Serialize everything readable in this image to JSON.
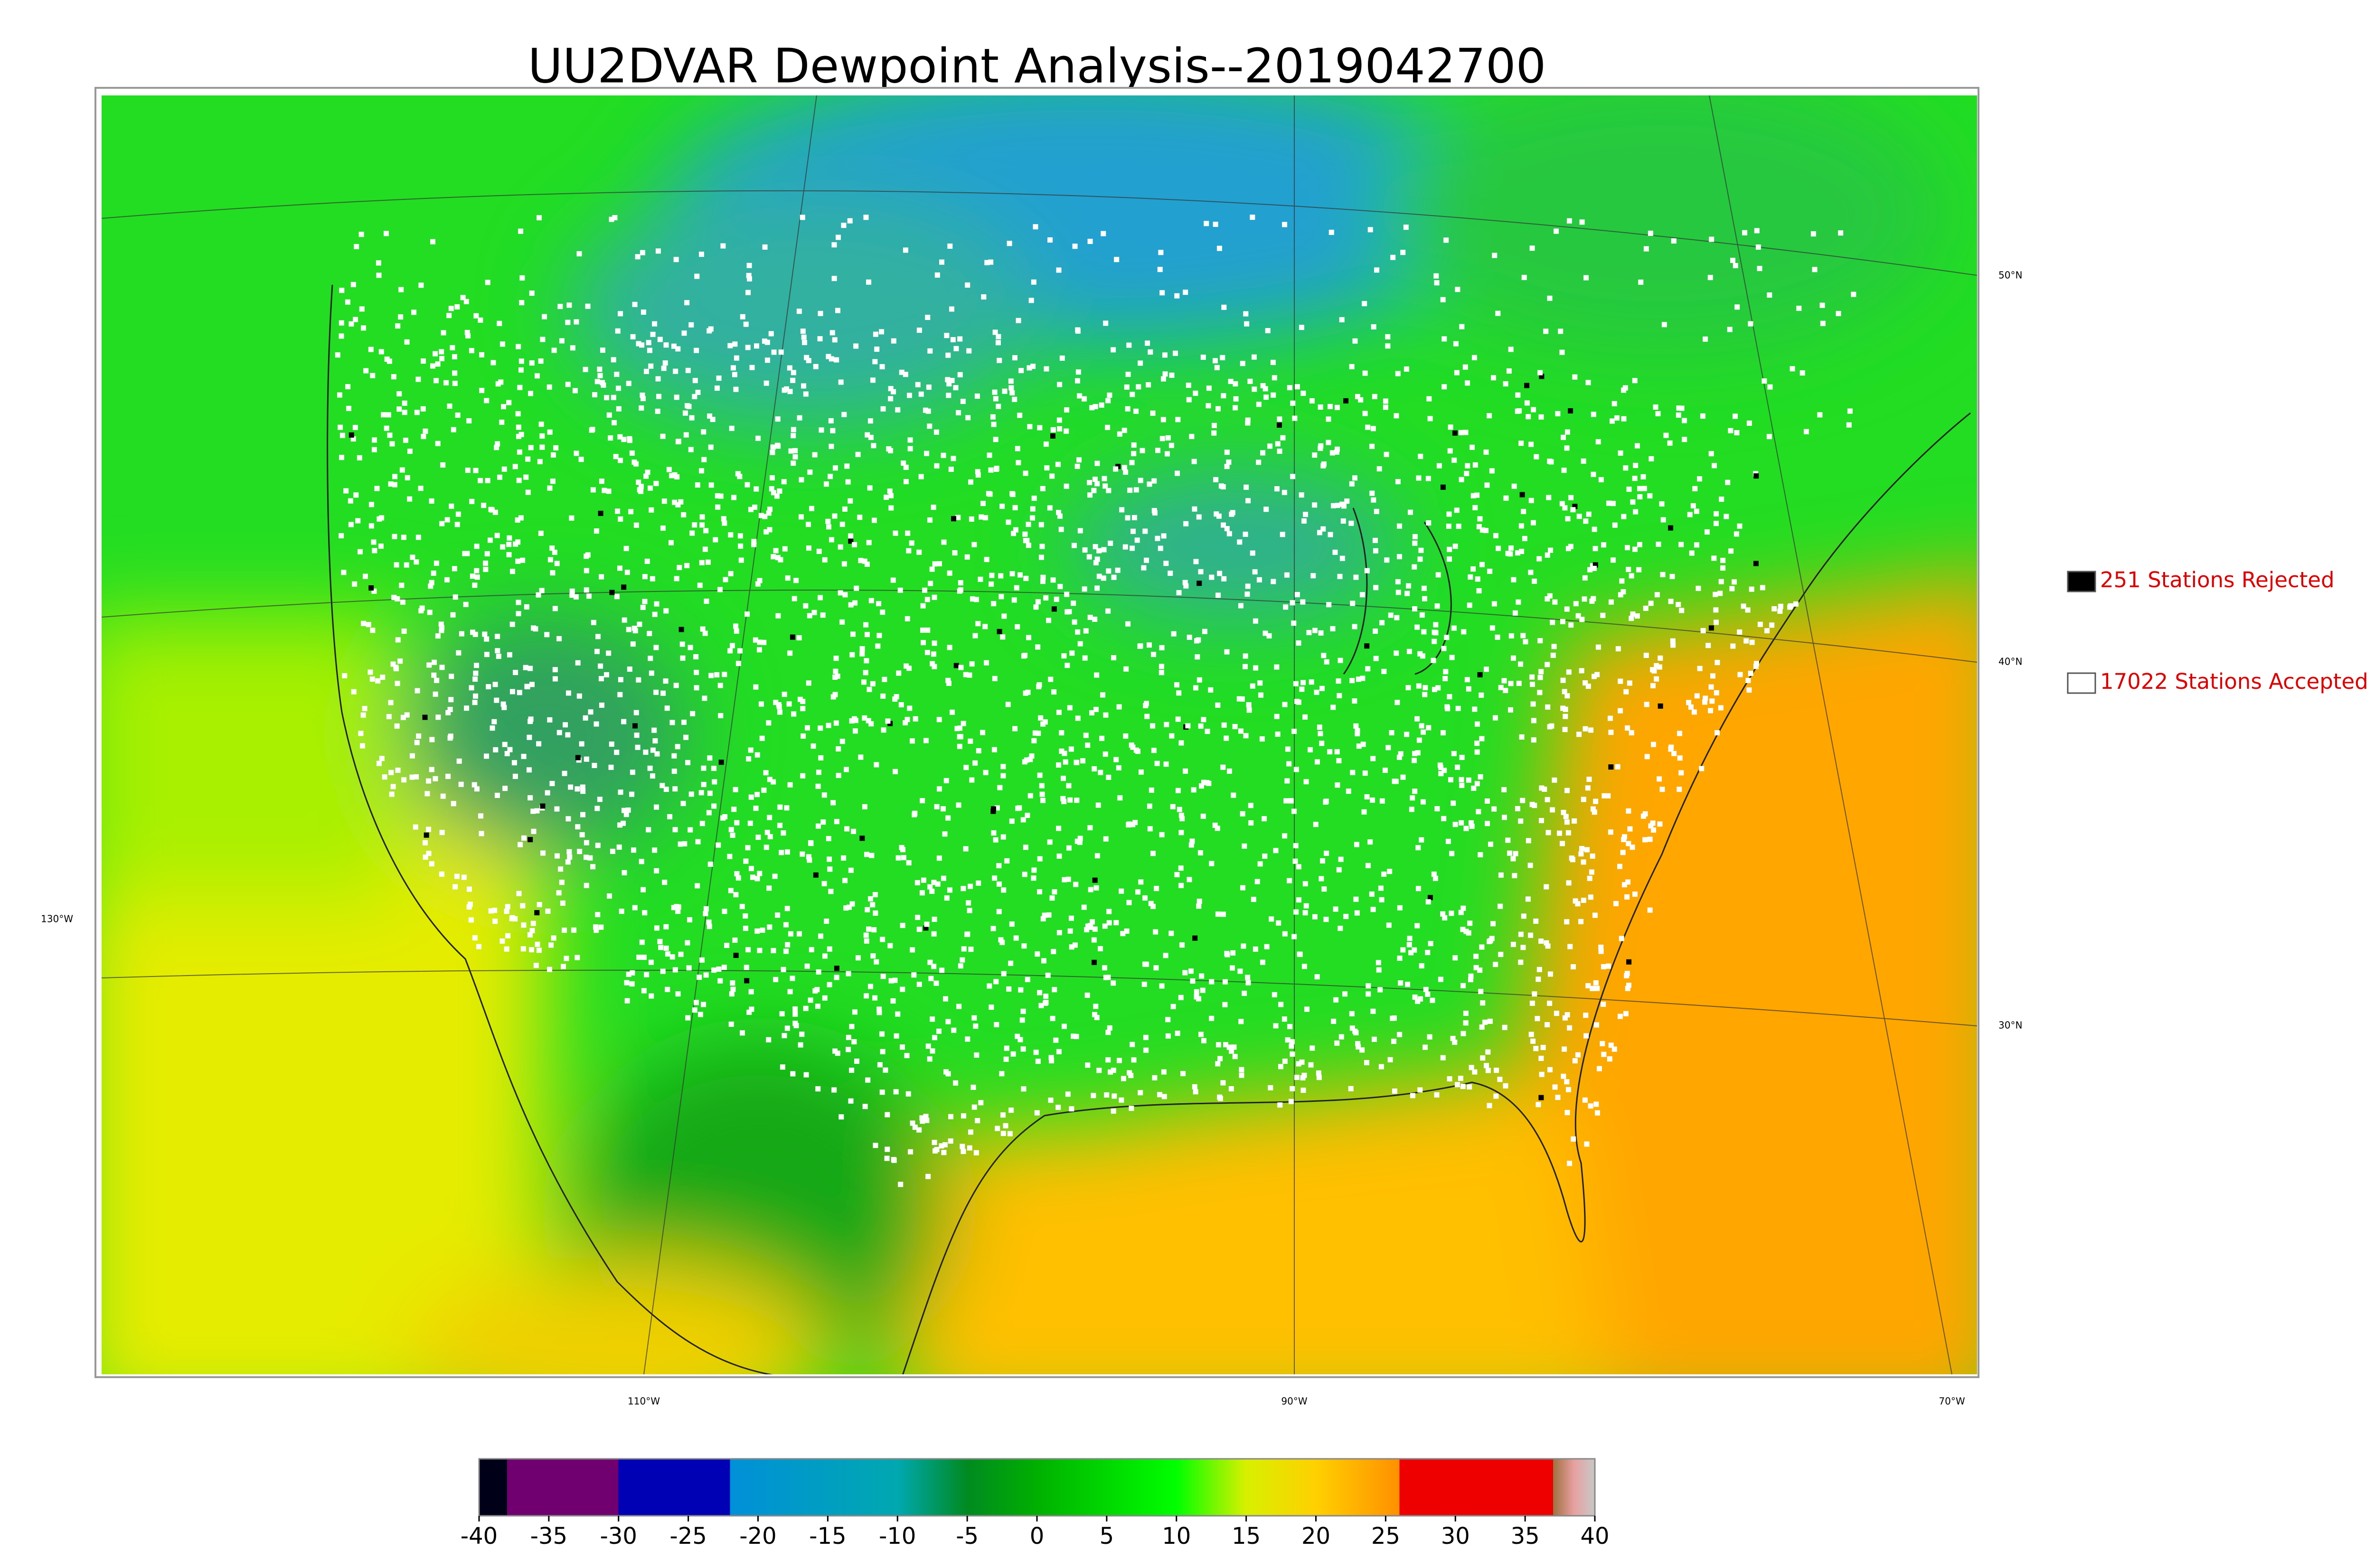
{
  "title": "UU2DVAR Dewpoint Analysis--2019042700",
  "legend": [
    {
      "label": "251 Stations Rejected",
      "color": "#000000"
    },
    {
      "label": "17022 Stations Accepted",
      "color": "#ffffff"
    }
  ],
  "graticule": {
    "latitudes": [
      "50°N",
      "40°N",
      "30°N"
    ],
    "longitudes": [
      "130°W",
      "110°W",
      "90°W",
      "70°W"
    ]
  },
  "colorbar": {
    "lim": [
      -40,
      40
    ],
    "ticks": [
      -40,
      -35,
      -30,
      -25,
      -20,
      -15,
      -10,
      -5,
      0,
      5,
      10,
      15,
      20,
      25,
      30,
      35,
      40
    ],
    "stops": [
      {
        "value": -40,
        "color": "#000018"
      },
      {
        "value": -38,
        "color": "#000018"
      },
      {
        "value": -38,
        "color": "#700070"
      },
      {
        "value": -30,
        "color": "#700070"
      },
      {
        "value": -30,
        "color": "#0000b4"
      },
      {
        "value": -22,
        "color": "#0000b4"
      },
      {
        "value": -22,
        "color": "#0090d8"
      },
      {
        "value": -10,
        "color": "#00a8b0"
      },
      {
        "value": -5,
        "color": "#008a20"
      },
      {
        "value": 0,
        "color": "#00b000"
      },
      {
        "value": 10,
        "color": "#00ff00"
      },
      {
        "value": 15,
        "color": "#d8f000"
      },
      {
        "value": 20,
        "color": "#ffd000"
      },
      {
        "value": 26,
        "color": "#ff9000"
      },
      {
        "value": 26,
        "color": "#ee0000"
      },
      {
        "value": 37,
        "color": "#ee0000"
      },
      {
        "value": 37,
        "color": "#a07040"
      },
      {
        "value": 38.5,
        "color": "#e8a0a0"
      },
      {
        "value": 40,
        "color": "#c8c8c8"
      }
    ]
  }
}
